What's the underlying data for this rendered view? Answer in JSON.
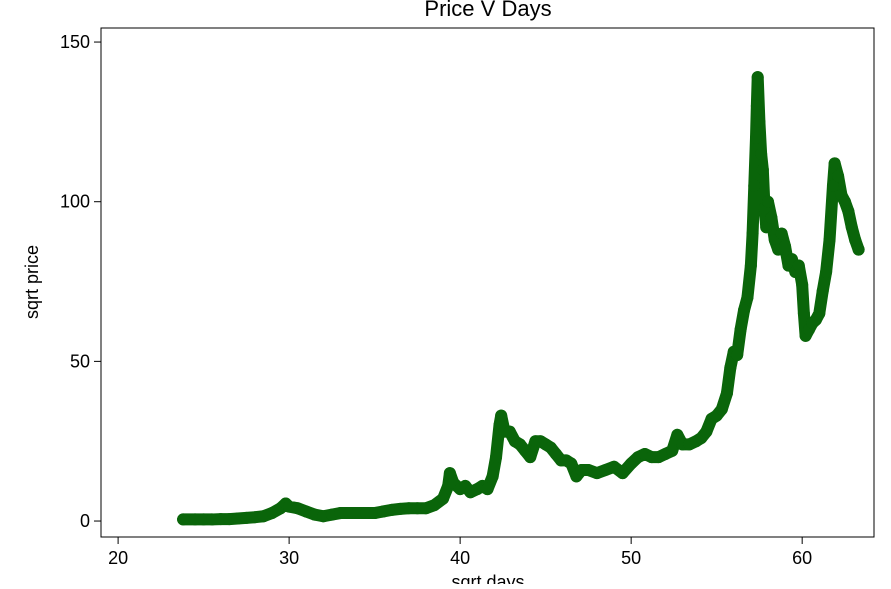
{
  "chart_data": {
    "type": "scatter",
    "title": "Price V Days",
    "xlabel": "sqrt days",
    "ylabel": "sqrt price",
    "color": "#0a650a",
    "xlim": [
      19,
      64.2
    ],
    "ylim": [
      -5,
      154.4
    ],
    "xticks": [
      20,
      30,
      40,
      50,
      60
    ],
    "yticks": [
      0,
      50,
      100,
      150
    ],
    "x": [
      23.8,
      24.5,
      25,
      25.5,
      26,
      26.5,
      27,
      27.5,
      28,
      28.5,
      29,
      29.5,
      29.8,
      30,
      30.5,
      31,
      31.5,
      32,
      32.5,
      33,
      33.5,
      34,
      34.5,
      35,
      35.5,
      36,
      36.5,
      37,
      37.5,
      38,
      38.5,
      39,
      39.3,
      39.4,
      39.6,
      40,
      40.3,
      40.6,
      41,
      41.3,
      41.6,
      41.9,
      42.1,
      42.3,
      42.4,
      42.6,
      42.9,
      43.2,
      43.5,
      43.8,
      44.1,
      44.4,
      44.7,
      45,
      45.3,
      45.6,
      45.9,
      46.2,
      46.5,
      46.8,
      47.1,
      47.5,
      48,
      48.5,
      49,
      49.5,
      50,
      50.4,
      50.8,
      51.2,
      51.6,
      52,
      52.4,
      52.7,
      53,
      53.4,
      53.8,
      54.1,
      54.4,
      54.7,
      55,
      55.3,
      55.6,
      55.8,
      56,
      56.2,
      56.4,
      56.6,
      56.8,
      57,
      57.1,
      57.2,
      57.3,
      57.35,
      57.4,
      57.5,
      57.6,
      57.7,
      57.8,
      57.9,
      58,
      58.2,
      58.4,
      58.6,
      58.8,
      59,
      59.2,
      59.4,
      59.6,
      59.8,
      60,
      60.1,
      60.2,
      60.4,
      60.6,
      60.8,
      61,
      61.2,
      61.4,
      61.6,
      61.8,
      61.9,
      62.1,
      62.3,
      62.5,
      62.7,
      62.9,
      63.1,
      63.3
    ],
    "values": [
      0.5,
      0.5,
      0.5,
      0.5,
      0.6,
      0.6,
      0.8,
      1,
      1.2,
      1.5,
      2.5,
      4,
      5.5,
      4.5,
      4,
      3,
      2,
      1.5,
      2,
      2.5,
      2.5,
      2.5,
      2.5,
      2.5,
      3,
      3.5,
      3.8,
      4,
      4,
      4,
      5,
      7,
      11,
      15,
      12,
      10,
      11,
      9,
      10,
      11,
      10,
      14,
      20,
      30,
      33,
      28,
      28,
      25,
      24,
      22,
      20,
      25,
      25,
      24,
      23,
      21,
      19,
      19,
      18,
      14,
      16,
      16,
      15,
      16,
      17,
      15,
      18,
      20,
      21,
      20,
      20,
      21,
      22,
      27,
      24,
      24,
      25,
      26,
      28,
      32,
      33,
      35,
      40,
      48,
      53,
      52,
      60,
      66,
      70,
      80,
      90,
      105,
      120,
      130,
      139,
      125,
      115,
      110,
      98,
      92,
      100,
      95,
      88,
      85,
      90,
      86,
      80,
      82,
      78,
      80,
      74,
      65,
      58,
      60,
      62,
      63,
      65,
      72,
      78,
      88,
      105,
      112,
      108,
      102,
      100,
      97,
      92,
      88,
      85
    ]
  }
}
